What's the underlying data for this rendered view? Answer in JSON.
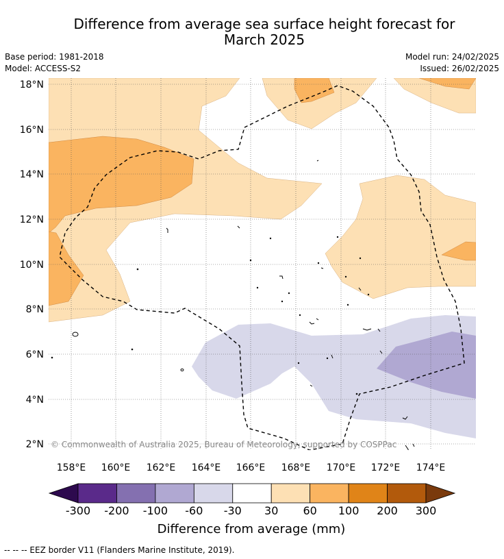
{
  "title_line1": "Difference from average sea surface height forecast for",
  "title_line2": "March 2025",
  "meta": {
    "base_period": "Base period: 1981-2018",
    "model": "Model: ACCESS-S2",
    "model_run": "Model run: 24/02/2025",
    "issued": "Issued: 26/02/2025"
  },
  "map": {
    "lat_labels": [
      "18°N",
      "16°N",
      "14°N",
      "12°N",
      "10°N",
      "8°N",
      "6°N",
      "4°N",
      "2°N"
    ],
    "lon_labels": [
      "158°E",
      "160°E",
      "162°E",
      "164°E",
      "166°E",
      "168°E",
      "170°E",
      "172°E",
      "174°E"
    ],
    "copyright": "© Commonwealth of Australia 2025, Bureau of Meteorology, supported by COSPPac"
  },
  "colorbar": {
    "ticks": [
      "-300",
      "-200",
      "-100",
      "-60",
      "-30",
      "30",
      "60",
      "100",
      "200",
      "300"
    ],
    "colors": [
      "#5a2a8a",
      "#8470b0",
      "#b0a8d2",
      "#d8d8ea",
      "#ffffff",
      "#fde0b4",
      "#fab460",
      "#e08418",
      "#b25a0c"
    ],
    "under_color": "#2d0a4e",
    "over_color": "#7a3a0c",
    "label": "Difference from average (mm)"
  },
  "legend_note": "--  --  -- EEZ border V11 (Flanders Marine Institute, 2019)."
}
